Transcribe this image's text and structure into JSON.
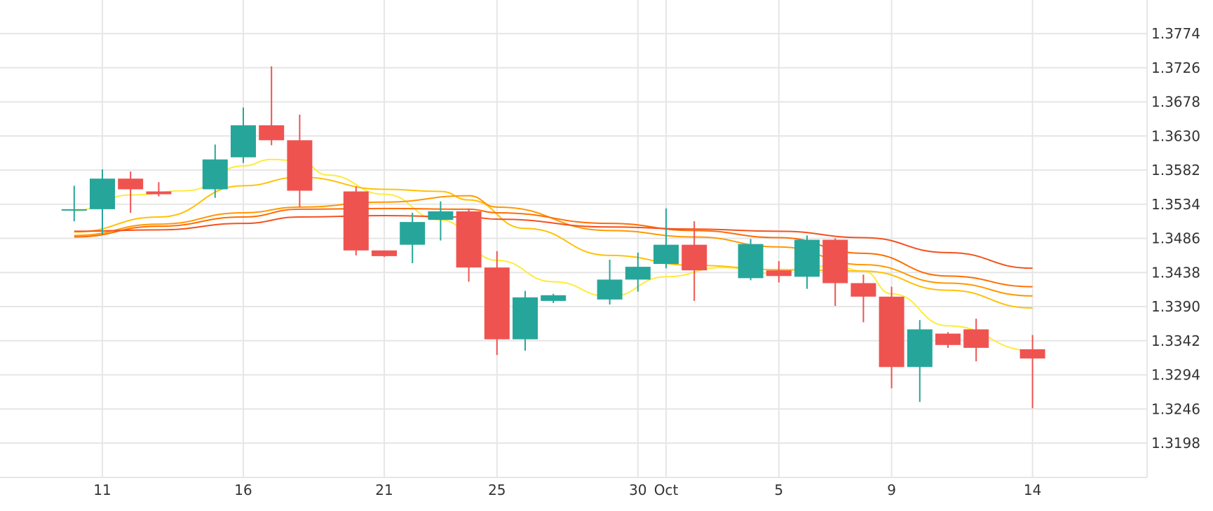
{
  "chart_data": {
    "type": "candlestick",
    "grid": true,
    "x_axis": {
      "type": "date",
      "ticks": [
        {
          "label": "11",
          "date": "2023-09-11"
        },
        {
          "label": "16",
          "date": "2023-09-16"
        },
        {
          "label": "21",
          "date": "2023-09-21"
        },
        {
          "label": "25",
          "date": "2023-09-25"
        },
        {
          "label": "30",
          "date": "2023-09-30"
        },
        {
          "label": "Oct",
          "date": "2023-10-01"
        },
        {
          "label": "5",
          "date": "2023-10-05"
        },
        {
          "label": "9",
          "date": "2023-10-09"
        },
        {
          "label": "14",
          "date": "2023-10-14"
        }
      ],
      "range": [
        "2023-09-07",
        "2023-10-15"
      ]
    },
    "y_axis": {
      "position": "right",
      "ticks": [
        1.3198,
        1.3246,
        1.3294,
        1.3342,
        1.339,
        1.3438,
        1.3486,
        1.3534,
        1.3582,
        1.363,
        1.3678,
        1.3726,
        1.3774
      ],
      "range": [
        1.315,
        1.3822
      ]
    },
    "colors": {
      "up": "#26a69a",
      "down": "#ef5350",
      "ma": [
        "#ffeb3b",
        "#ffc107",
        "#ff9800",
        "#ff6d00",
        "#f4511e"
      ]
    },
    "candles": [
      {
        "date": "2023-09-10",
        "open": 1.3525,
        "high": 1.356,
        "low": 1.351,
        "close": 1.3527
      },
      {
        "date": "2023-09-11",
        "open": 1.3527,
        "high": 1.3583,
        "low": 1.3492,
        "close": 1.357
      },
      {
        "date": "2023-09-12",
        "open": 1.357,
        "high": 1.358,
        "low": 1.3522,
        "close": 1.3555
      },
      {
        "date": "2023-09-13",
        "open": 1.3552,
        "high": 1.3565,
        "low": 1.3545,
        "close": 1.3548
      },
      {
        "date": "2023-09-15",
        "open": 1.3555,
        "high": 1.3618,
        "low": 1.3543,
        "close": 1.3597
      },
      {
        "date": "2023-09-16",
        "open": 1.36,
        "high": 1.367,
        "low": 1.3592,
        "close": 1.3645
      },
      {
        "date": "2023-09-17",
        "open": 1.3645,
        "high": 1.3728,
        "low": 1.3617,
        "close": 1.3624
      },
      {
        "date": "2023-09-18",
        "open": 1.3624,
        "high": 1.366,
        "low": 1.353,
        "close": 1.3553
      },
      {
        "date": "2023-09-20",
        "open": 1.3552,
        "high": 1.3559,
        "low": 1.3462,
        "close": 1.3469
      },
      {
        "date": "2023-09-21",
        "open": 1.3469,
        "high": 1.3469,
        "low": 1.346,
        "close": 1.3461
      },
      {
        "date": "2023-09-22",
        "open": 1.3477,
        "high": 1.3522,
        "low": 1.3451,
        "close": 1.3509
      },
      {
        "date": "2023-09-23",
        "open": 1.3512,
        "high": 1.3538,
        "low": 1.3483,
        "close": 1.3524
      },
      {
        "date": "2023-09-24",
        "open": 1.3524,
        "high": 1.3528,
        "low": 1.3425,
        "close": 1.3445
      },
      {
        "date": "2023-09-25",
        "open": 1.3445,
        "high": 1.3468,
        "low": 1.3322,
        "close": 1.3344
      },
      {
        "date": "2023-09-26",
        "open": 1.3344,
        "high": 1.3412,
        "low": 1.3328,
        "close": 1.3403
      },
      {
        "date": "2023-09-27",
        "open": 1.3398,
        "high": 1.3408,
        "low": 1.3395,
        "close": 1.3406
      },
      {
        "date": "2023-09-29",
        "open": 1.34,
        "high": 1.3456,
        "low": 1.3393,
        "close": 1.3428
      },
      {
        "date": "2023-09-30",
        "open": 1.3428,
        "high": 1.3466,
        "low": 1.3411,
        "close": 1.3446
      },
      {
        "date": "2023-10-01",
        "open": 1.345,
        "high": 1.3528,
        "low": 1.3444,
        "close": 1.3477
      },
      {
        "date": "2023-10-02",
        "open": 1.3477,
        "high": 1.351,
        "low": 1.3398,
        "close": 1.3441
      },
      {
        "date": "2023-10-04",
        "open": 1.343,
        "high": 1.3485,
        "low": 1.3427,
        "close": 1.3478
      },
      {
        "date": "2023-10-05",
        "open": 1.3441,
        "high": 1.3454,
        "low": 1.3424,
        "close": 1.3433
      },
      {
        "date": "2023-10-06",
        "open": 1.3432,
        "high": 1.349,
        "low": 1.3415,
        "close": 1.3484
      },
      {
        "date": "2023-10-07",
        "open": 1.3484,
        "high": 1.3486,
        "low": 1.3391,
        "close": 1.3423
      },
      {
        "date": "2023-10-08",
        "open": 1.3423,
        "high": 1.3435,
        "low": 1.3368,
        "close": 1.3404
      },
      {
        "date": "2023-10-09",
        "open": 1.3404,
        "high": 1.3418,
        "low": 1.3275,
        "close": 1.3305
      },
      {
        "date": "2023-10-10",
        "open": 1.3305,
        "high": 1.3371,
        "low": 1.3256,
        "close": 1.3358
      },
      {
        "date": "2023-10-11",
        "open": 1.3352,
        "high": 1.3354,
        "low": 1.3332,
        "close": 1.3336
      },
      {
        "date": "2023-10-12",
        "open": 1.3358,
        "high": 1.3373,
        "low": 1.3313,
        "close": 1.3332
      },
      {
        "date": "2023-10-14",
        "open": 1.333,
        "high": 1.335,
        "low": 1.3247,
        "close": 1.3317
      }
    ],
    "moving_averages": [
      {
        "color": "#ffeb3b",
        "points": [
          {
            "date": "2023-09-10",
            "value": 1.3525
          },
          {
            "date": "2023-09-12",
            "value": 1.3547
          },
          {
            "date": "2023-09-14",
            "value": 1.3553
          },
          {
            "date": "2023-09-16",
            "value": 1.3588
          },
          {
            "date": "2023-09-17",
            "value": 1.3597
          },
          {
            "date": "2023-09-18",
            "value": 1.3595
          },
          {
            "date": "2023-09-19",
            "value": 1.3575
          },
          {
            "date": "2023-09-21",
            "value": 1.3548
          },
          {
            "date": "2023-09-23",
            "value": 1.3512
          },
          {
            "date": "2023-09-25",
            "value": 1.3455
          },
          {
            "date": "2023-09-27",
            "value": 1.3425
          },
          {
            "date": "2023-09-29",
            "value": 1.3404
          },
          {
            "date": "2023-10-01",
            "value": 1.3432
          },
          {
            "date": "2023-10-03",
            "value": 1.3445
          },
          {
            "date": "2023-10-05",
            "value": 1.3436
          },
          {
            "date": "2023-10-06",
            "value": 1.3447
          },
          {
            "date": "2023-10-07",
            "value": 1.3447
          },
          {
            "date": "2023-10-08",
            "value": 1.344
          },
          {
            "date": "2023-10-09",
            "value": 1.3408
          },
          {
            "date": "2023-10-11",
            "value": 1.3363
          },
          {
            "date": "2023-10-14",
            "value": 1.3328
          }
        ]
      },
      {
        "color": "#ffc107",
        "points": [
          {
            "date": "2023-09-10",
            "value": 1.3495
          },
          {
            "date": "2023-09-13",
            "value": 1.3516
          },
          {
            "date": "2023-09-16",
            "value": 1.356
          },
          {
            "date": "2023-09-18",
            "value": 1.3572
          },
          {
            "date": "2023-09-21",
            "value": 1.3555
          },
          {
            "date": "2023-09-23",
            "value": 1.3552
          },
          {
            "date": "2023-09-24",
            "value": 1.354
          },
          {
            "date": "2023-09-26",
            "value": 1.35
          },
          {
            "date": "2023-09-29",
            "value": 1.3462
          },
          {
            "date": "2023-10-02",
            "value": 1.3448
          },
          {
            "date": "2023-10-05",
            "value": 1.3442
          },
          {
            "date": "2023-10-08",
            "value": 1.344
          },
          {
            "date": "2023-10-11",
            "value": 1.3413
          },
          {
            "date": "2023-10-14",
            "value": 1.3388
          }
        ]
      },
      {
        "color": "#ff9800",
        "points": [
          {
            "date": "2023-09-10",
            "value": 1.349
          },
          {
            "date": "2023-09-13",
            "value": 1.3506
          },
          {
            "date": "2023-09-16",
            "value": 1.3522
          },
          {
            "date": "2023-09-18",
            "value": 1.353
          },
          {
            "date": "2023-09-21",
            "value": 1.3537
          },
          {
            "date": "2023-09-24",
            "value": 1.3546
          },
          {
            "date": "2023-09-25",
            "value": 1.353
          },
          {
            "date": "2023-09-29",
            "value": 1.3497
          },
          {
            "date": "2023-10-02",
            "value": 1.3488
          },
          {
            "date": "2023-10-05",
            "value": 1.3474
          },
          {
            "date": "2023-10-08",
            "value": 1.3449
          },
          {
            "date": "2023-10-11",
            "value": 1.3423
          },
          {
            "date": "2023-10-14",
            "value": 1.3405
          }
        ]
      },
      {
        "color": "#ff6d00",
        "points": [
          {
            "date": "2023-09-10",
            "value": 1.3488
          },
          {
            "date": "2023-09-13",
            "value": 1.3503
          },
          {
            "date": "2023-09-16",
            "value": 1.3516
          },
          {
            "date": "2023-09-18",
            "value": 1.3527
          },
          {
            "date": "2023-09-21",
            "value": 1.3528
          },
          {
            "date": "2023-09-24",
            "value": 1.3527
          },
          {
            "date": "2023-09-25",
            "value": 1.3522
          },
          {
            "date": "2023-09-29",
            "value": 1.3507
          },
          {
            "date": "2023-10-02",
            "value": 1.3497
          },
          {
            "date": "2023-10-05",
            "value": 1.3487
          },
          {
            "date": "2023-10-08",
            "value": 1.3465
          },
          {
            "date": "2023-10-11",
            "value": 1.3433
          },
          {
            "date": "2023-10-14",
            "value": 1.3418
          }
        ]
      },
      {
        "color": "#f4511e",
        "points": [
          {
            "date": "2023-09-10",
            "value": 1.3496
          },
          {
            "date": "2023-09-13",
            "value": 1.3498
          },
          {
            "date": "2023-09-16",
            "value": 1.3507
          },
          {
            "date": "2023-09-18",
            "value": 1.3516
          },
          {
            "date": "2023-09-21",
            "value": 1.3518
          },
          {
            "date": "2023-09-24",
            "value": 1.3516
          },
          {
            "date": "2023-09-25",
            "value": 1.3513
          },
          {
            "date": "2023-09-29",
            "value": 1.3502
          },
          {
            "date": "2023-10-02",
            "value": 1.3499
          },
          {
            "date": "2023-10-05",
            "value": 1.3496
          },
          {
            "date": "2023-10-08",
            "value": 1.3487
          },
          {
            "date": "2023-10-11",
            "value": 1.3466
          },
          {
            "date": "2023-10-14",
            "value": 1.3444
          }
        ]
      }
    ]
  }
}
